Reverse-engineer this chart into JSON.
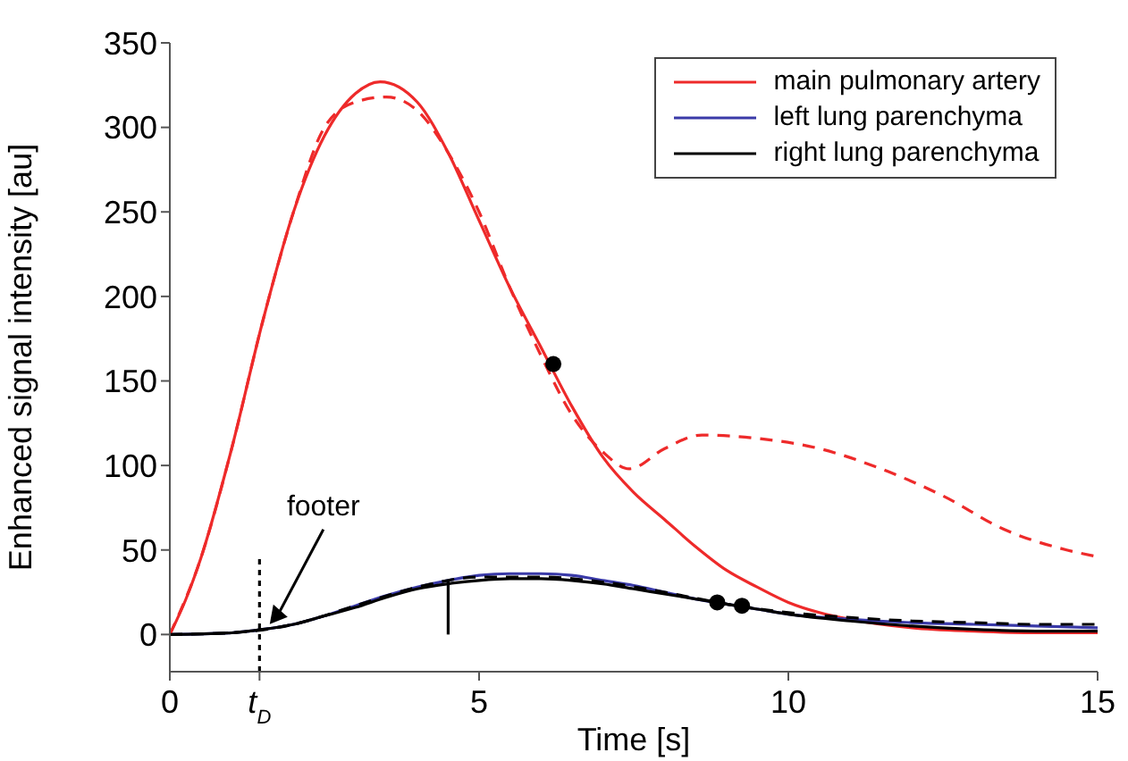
{
  "chart_data": {
    "type": "line",
    "xlabel": "Time [s]",
    "ylabel": "Enhanced signal intensity [au]",
    "xlim": [
      0,
      15
    ],
    "ylim": [
      -22,
      350
    ],
    "xticks": [
      0,
      {
        "value": 1.45,
        "label": "t$_{D}$"
      },
      5,
      10,
      15
    ],
    "yticks": [
      0,
      50,
      100,
      150,
      200,
      250,
      300,
      350
    ],
    "grid": false,
    "legend": "top right",
    "marker": "none",
    "annotations": [
      "footer"
    ],
    "series": [
      {
        "name": "main pulmonary artery",
        "color": "#ee2a2a",
        "line_style": "solid",
        "x": [
          0,
          0.25,
          0.5,
          1,
          1.5,
          2,
          2.5,
          3,
          3.4,
          4,
          4.5,
          5,
          5.5,
          6,
          6.5,
          7,
          7.5,
          8,
          8.5,
          9,
          9.5,
          10,
          10.5,
          11,
          12,
          13,
          14,
          15
        ],
        "values": [
          0,
          20,
          45,
          110,
          185,
          250,
          295,
          320,
          327,
          315,
          285,
          245,
          205,
          170,
          135,
          105,
          84,
          68,
          52,
          38,
          28,
          19,
          13,
          9,
          4,
          2,
          1,
          1
        ]
      },
      {
        "name": "left lung parenchyma",
        "color": "#3a3aa8",
        "line_style": "solid",
        "x": [
          0,
          1,
          1.5,
          2,
          2.5,
          3,
          3.5,
          4,
          4.5,
          5,
          5.5,
          6,
          6.5,
          7,
          7.5,
          8,
          8.5,
          9,
          9.5,
          10,
          11,
          12,
          13,
          14,
          15
        ],
        "values": [
          0,
          1,
          3,
          6,
          11,
          17,
          23,
          28,
          32,
          35,
          36,
          36,
          35,
          32,
          29,
          25,
          21,
          18,
          15,
          12,
          9,
          7,
          6,
          5,
          4
        ]
      },
      {
        "name": "right lung parenchyma",
        "color": "#000000",
        "line_style": "solid",
        "x": [
          0,
          1,
          1.5,
          2,
          2.5,
          3,
          3.5,
          4,
          4.5,
          5,
          5.5,
          6,
          6.5,
          7,
          7.5,
          8,
          8.5,
          9,
          9.5,
          10,
          11,
          12,
          13,
          14,
          15
        ],
        "values": [
          0,
          1,
          3,
          6,
          11,
          16,
          22,
          27,
          30,
          32,
          33,
          33,
          32,
          30,
          27,
          24,
          21,
          18,
          15,
          12,
          8,
          5,
          3,
          2,
          2
        ]
      },
      {
        "color": "#ee2a2a",
        "line_style": "dashed",
        "x": [
          0,
          0.5,
          1,
          1.5,
          2,
          2.5,
          3,
          3.5,
          4,
          4.5,
          5,
          5.5,
          6,
          6.5,
          7,
          7.43,
          8,
          8.6,
          9.5,
          10.5,
          11.5,
          12.5,
          13.5,
          14.5,
          15
        ],
        "values": [
          0,
          45,
          110,
          185,
          250,
          300,
          315,
          318,
          310,
          285,
          250,
          205,
          165,
          130,
          108,
          98,
          110,
          118,
          116,
          110,
          98,
          82,
          62,
          50,
          46
        ]
      },
      {
        "color": "#000000",
        "line_style": "dashed",
        "x": [
          0,
          1,
          2,
          3,
          4,
          5,
          6,
          7,
          8,
          9,
          10,
          11,
          12,
          13,
          14,
          15
        ],
        "values": [
          0,
          1,
          6,
          17,
          28,
          34,
          34,
          31,
          25,
          18,
          13,
          10,
          8,
          7,
          6,
          6
        ]
      },
      {
        "color": "#000000",
        "line_style": "dotted",
        "x": [
          1.45,
          1.45
        ],
        "values": [
          -22,
          47
        ]
      },
      {
        "color": "#000000",
        "line_style": "solid",
        "x": [
          4.5,
          4.5
        ],
        "values": [
          0,
          32
        ]
      },
      {
        "type": "scatter",
        "color": "#000000",
        "marker": "circle",
        "x": [
          6.2,
          8.85,
          9.25
        ],
        "values": [
          160,
          19,
          17
        ]
      }
    ]
  }
}
